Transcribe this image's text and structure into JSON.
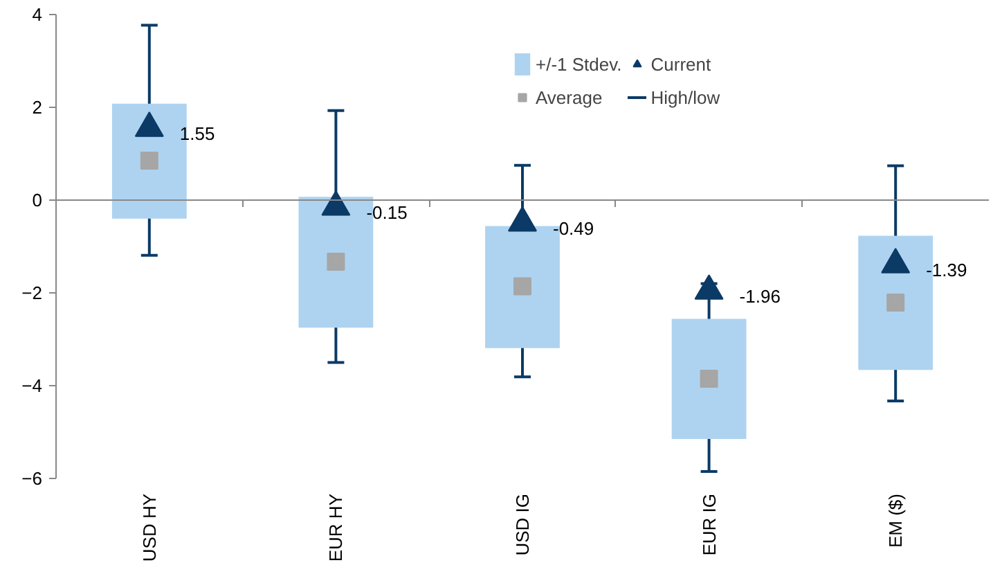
{
  "chart_data": {
    "type": "bar",
    "categories": [
      "USD HY",
      "EUR HY",
      "USD IG",
      "EUR IG",
      "EM ($)"
    ],
    "series": [
      {
        "name": "+/-1 Stdev.",
        "color": "#aed3f0",
        "base": [
          -0.4,
          -2.75,
          -3.19,
          -5.15,
          -3.66
        ],
        "values": [
          2.48,
          2.82,
          2.63,
          2.59,
          2.89
        ]
      },
      {
        "name": "Current",
        "type": "scatter",
        "marker": "triangle",
        "color": "#0b3a66",
        "values": [
          1.55,
          -0.15,
          -0.49,
          -1.96,
          -1.39
        ],
        "value_labels": [
          "1.55",
          "-0.15",
          "-0.49",
          "-1.96",
          "-1.39"
        ],
        "errors": [
          [
            -1.19,
            3.77
          ],
          [
            -3.5,
            1.93
          ],
          [
            -3.81,
            0.75
          ],
          [
            -5.85,
            -1.8
          ],
          [
            -4.33,
            0.74
          ]
        ]
      },
      {
        "name": "Average",
        "type": "scatter",
        "marker": "square",
        "color": "#a6a6a6",
        "values": [
          0.85,
          -1.33,
          -1.86,
          -3.85,
          -2.21
        ]
      }
    ],
    "annotations": [
      "High/low"
    ],
    "ylim": [
      -6,
      4
    ],
    "yticks": [
      -6,
      -4,
      -2,
      0,
      2,
      4
    ],
    "legend": "top right"
  }
}
